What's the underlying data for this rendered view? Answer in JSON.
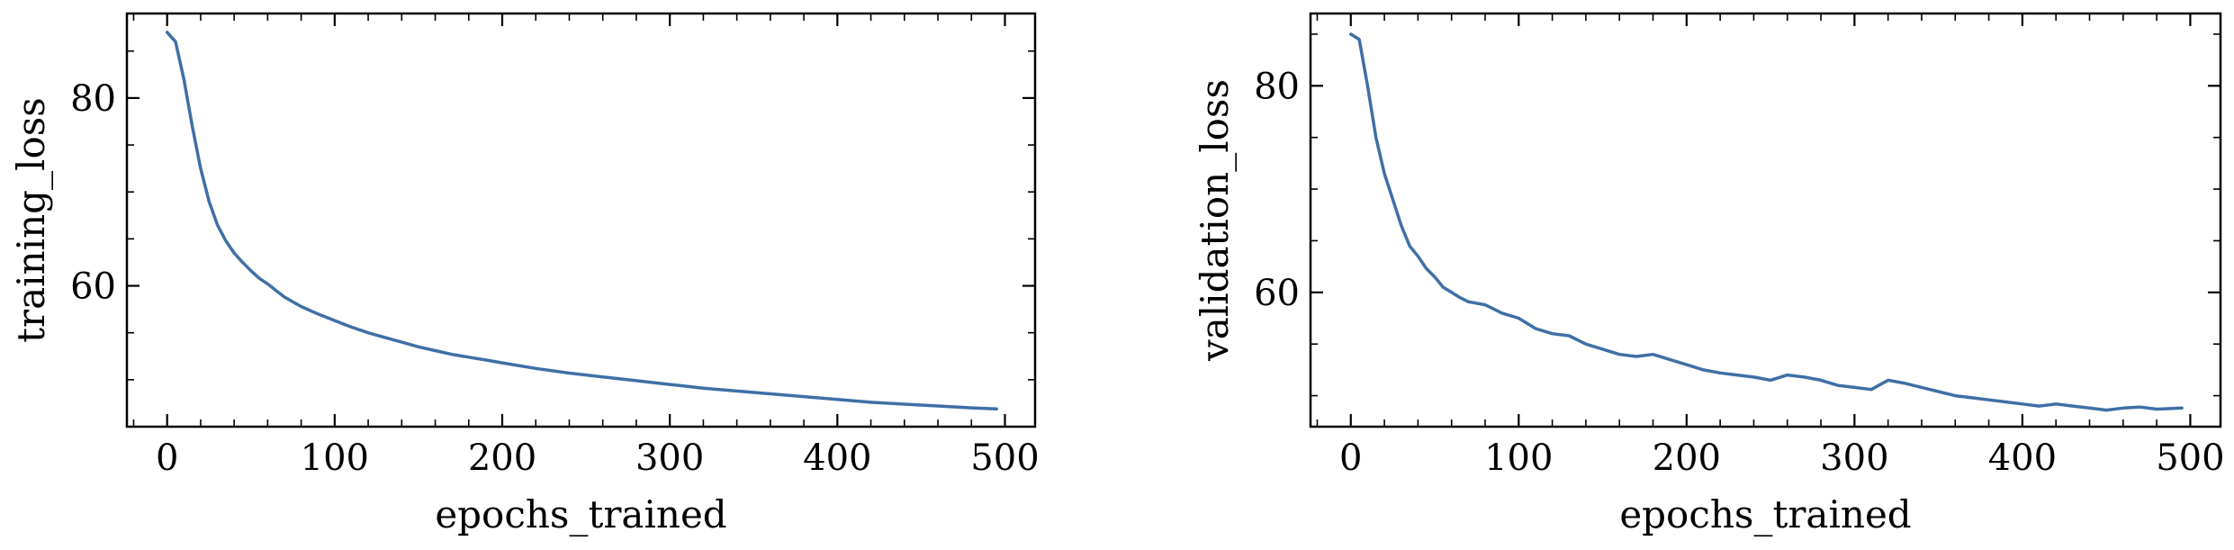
{
  "chart_data": [
    {
      "type": "line",
      "title": "",
      "xlabel": "epochs_trained",
      "ylabel": "training_loss",
      "xlim": [
        -24,
        518
      ],
      "ylim": [
        45,
        89
      ],
      "x_ticks": [
        0,
        100,
        200,
        300,
        400,
        500
      ],
      "x_tick_labels": [
        "0",
        "100",
        "200",
        "300",
        "400",
        "500"
      ],
      "y_ticks": [
        60,
        80
      ],
      "y_tick_labels": [
        "60",
        "80"
      ],
      "x_minor_step": 20,
      "y_minor_step": 5,
      "grid": false,
      "series": [
        {
          "color": "#3f6fa5",
          "x": [
            0,
            5,
            10,
            15,
            20,
            25,
            30,
            35,
            40,
            45,
            50,
            55,
            60,
            65,
            70,
            80,
            90,
            100,
            110,
            120,
            130,
            140,
            150,
            160,
            170,
            180,
            190,
            200,
            220,
            240,
            260,
            280,
            300,
            320,
            340,
            360,
            380,
            400,
            420,
            440,
            460,
            480,
            495
          ],
          "y": [
            87.0,
            86.0,
            82.0,
            77.0,
            72.5,
            69.0,
            66.5,
            64.8,
            63.5,
            62.5,
            61.6,
            60.8,
            60.2,
            59.5,
            58.8,
            57.8,
            57.0,
            56.3,
            55.6,
            55.0,
            54.5,
            54.0,
            53.5,
            53.1,
            52.7,
            52.4,
            52.1,
            51.8,
            51.2,
            50.7,
            50.3,
            49.9,
            49.5,
            49.1,
            48.8,
            48.5,
            48.2,
            47.9,
            47.6,
            47.4,
            47.2,
            47.0,
            46.9
          ]
        }
      ]
    },
    {
      "type": "line",
      "title": "",
      "xlabel": "epochs_trained",
      "ylabel": "validation_loss",
      "xlim": [
        -24,
        518
      ],
      "ylim": [
        47,
        87
      ],
      "x_ticks": [
        0,
        100,
        200,
        300,
        400,
        500
      ],
      "x_tick_labels": [
        "0",
        "100",
        "200",
        "300",
        "400",
        "500"
      ],
      "y_ticks": [
        60,
        80
      ],
      "y_tick_labels": [
        "60",
        "80"
      ],
      "x_minor_step": 20,
      "y_minor_step": 5,
      "grid": false,
      "series": [
        {
          "color": "#3f6fa5",
          "x": [
            0,
            5,
            10,
            15,
            20,
            25,
            30,
            35,
            40,
            45,
            50,
            55,
            60,
            65,
            70,
            80,
            90,
            100,
            110,
            120,
            130,
            140,
            150,
            160,
            170,
            180,
            190,
            200,
            210,
            220,
            230,
            240,
            250,
            260,
            270,
            280,
            290,
            300,
            310,
            320,
            330,
            340,
            350,
            360,
            370,
            380,
            390,
            400,
            410,
            420,
            430,
            440,
            450,
            460,
            470,
            480,
            495
          ],
          "y": [
            85.0,
            84.5,
            80.0,
            75.0,
            71.5,
            69.0,
            66.5,
            64.5,
            63.5,
            62.3,
            61.5,
            60.5,
            60.0,
            59.5,
            59.1,
            58.8,
            58.0,
            57.5,
            56.5,
            56.0,
            55.8,
            55.0,
            54.5,
            54.0,
            53.8,
            54.0,
            53.5,
            53.0,
            52.5,
            52.2,
            52.0,
            51.8,
            51.5,
            52.0,
            51.8,
            51.5,
            51.0,
            50.8,
            50.6,
            51.5,
            51.2,
            50.8,
            50.4,
            50.0,
            49.8,
            49.6,
            49.4,
            49.2,
            49.0,
            49.2,
            49.0,
            48.8,
            48.6,
            48.8,
            48.9,
            48.7,
            48.8
          ]
        }
      ]
    }
  ]
}
